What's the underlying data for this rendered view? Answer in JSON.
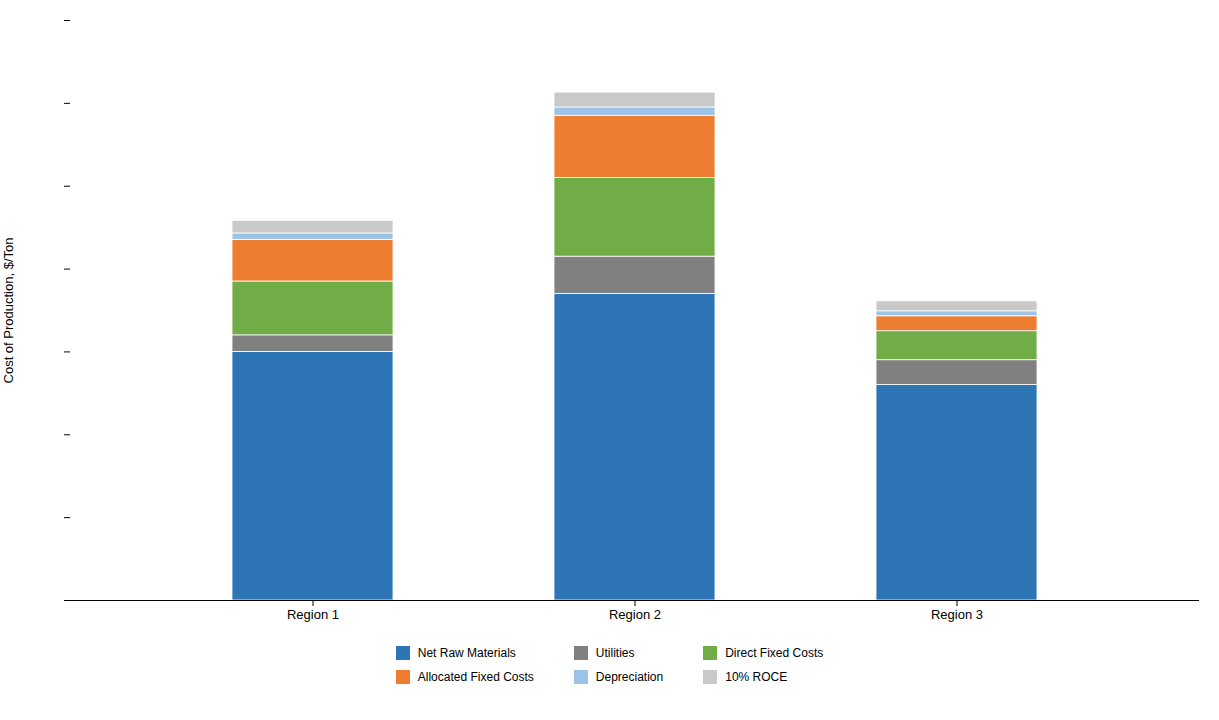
{
  "chart_data": {
    "type": "bar",
    "stacked": true,
    "categories": [
      "Region 1",
      "Region 2",
      "Region 3"
    ],
    "series": [
      {
        "name": "Net Raw Materials",
        "color": "#2E75B6",
        "values": [
          300,
          370,
          260
        ]
      },
      {
        "name": "Utilities",
        "color": "#808080",
        "values": [
          20,
          45,
          30
        ]
      },
      {
        "name": "Direct Fixed Costs",
        "color": "#70AD47",
        "values": [
          65,
          95,
          35
        ]
      },
      {
        "name": "Allocated Fixed Costs",
        "color": "#ED7D31",
        "values": [
          50,
          75,
          18
        ]
      },
      {
        "name": "Depreciation",
        "color": "#9DC3E6",
        "values": [
          8,
          10,
          6
        ]
      },
      {
        "name": "10% ROCE",
        "color": "#C9C9C9",
        "values": [
          15,
          18,
          12
        ]
      }
    ],
    "ylabel": "Cost of Production, $/Ton",
    "ylim": [
      0,
      700
    ],
    "yticks": [
      0,
      100,
      200,
      300,
      400,
      500,
      600,
      700
    ],
    "grid": false,
    "tick_labels": "x",
    "legend": "bottom"
  }
}
